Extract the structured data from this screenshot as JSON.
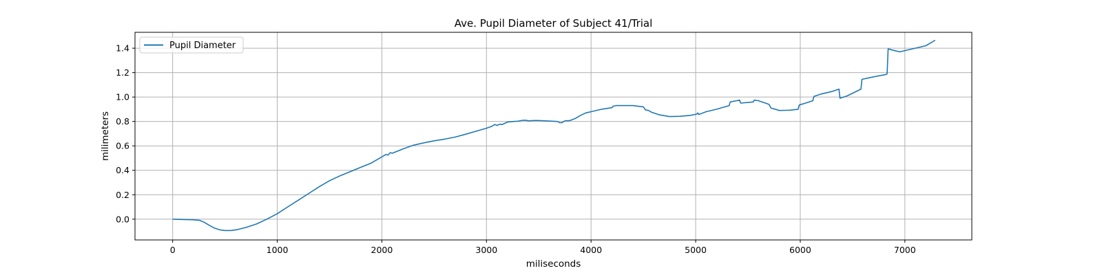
{
  "chart_data": {
    "type": "line",
    "title": "Ave. Pupil Diameter of Subject 41/Trial",
    "xlabel": "miliseconds",
    "ylabel": "milimeters",
    "xlim": [
      -360,
      7640
    ],
    "ylim": [
      -0.17,
      1.53
    ],
    "xticks": [
      0,
      1000,
      2000,
      3000,
      4000,
      5000,
      6000,
      7000
    ],
    "yticks": [
      0.0,
      0.2,
      0.4,
      0.6,
      0.8,
      1.0,
      1.2,
      1.4
    ],
    "xtick_labels": [
      "0",
      "1000",
      "2000",
      "3000",
      "4000",
      "5000",
      "6000",
      "7000"
    ],
    "ytick_labels": [
      "0.0",
      "0.2",
      "0.4",
      "0.6",
      "0.8",
      "1.0",
      "1.2",
      "1.4"
    ],
    "grid": true,
    "legend_position": "upper-left",
    "colors": {
      "series": "#1f77b4",
      "grid": "#b0b0b0"
    },
    "series": [
      {
        "name": "Pupil Diameter",
        "x": [
          0,
          100,
          200,
          260,
          300,
          350,
          400,
          450,
          500,
          560,
          620,
          700,
          800,
          900,
          1000,
          1100,
          1200,
          1300,
          1400,
          1500,
          1600,
          1700,
          1800,
          1900,
          2000,
          2040,
          2060,
          2080,
          2100,
          2200,
          2300,
          2400,
          2500,
          2600,
          2700,
          2800,
          2900,
          3000,
          3050,
          3080,
          3100,
          3130,
          3150,
          3200,
          3260,
          3300,
          3350,
          3380,
          3400,
          3450,
          3500,
          3600,
          3680,
          3700,
          3720,
          3750,
          3800,
          3850,
          3900,
          3950,
          4000,
          4100,
          4200,
          4210,
          4240,
          4260,
          4300,
          4400,
          4500,
          4520,
          4550,
          4580,
          4650,
          4750,
          4850,
          4950,
          5010,
          5020,
          5030,
          5100,
          5200,
          5300,
          5320,
          5330,
          5420,
          5430,
          5550,
          5560,
          5600,
          5700,
          5720,
          5800,
          5900,
          5980,
          5990,
          6050,
          6120,
          6130,
          6200,
          6300,
          6370,
          6380,
          6450,
          6580,
          6590,
          6700,
          6820,
          6830,
          6840,
          6880,
          6950,
          7000,
          7100,
          7200,
          7250,
          7290
        ],
        "values": [
          0.0,
          -0.003,
          -0.005,
          -0.01,
          -0.025,
          -0.05,
          -0.073,
          -0.087,
          -0.093,
          -0.093,
          -0.085,
          -0.068,
          -0.04,
          0.0,
          0.045,
          0.1,
          0.155,
          0.21,
          0.265,
          0.315,
          0.355,
          0.39,
          0.425,
          0.46,
          0.51,
          0.53,
          0.525,
          0.545,
          0.54,
          0.575,
          0.605,
          0.625,
          0.642,
          0.655,
          0.672,
          0.695,
          0.72,
          0.745,
          0.76,
          0.775,
          0.768,
          0.778,
          0.775,
          0.795,
          0.8,
          0.802,
          0.81,
          0.81,
          0.805,
          0.808,
          0.808,
          0.803,
          0.8,
          0.79,
          0.79,
          0.805,
          0.808,
          0.825,
          0.85,
          0.87,
          0.88,
          0.9,
          0.913,
          0.925,
          0.93,
          0.93,
          0.93,
          0.93,
          0.92,
          0.895,
          0.89,
          0.875,
          0.855,
          0.84,
          0.842,
          0.85,
          0.86,
          0.87,
          0.857,
          0.88,
          0.9,
          0.925,
          0.93,
          0.96,
          0.975,
          0.95,
          0.96,
          0.975,
          0.97,
          0.94,
          0.91,
          0.89,
          0.892,
          0.9,
          0.935,
          0.95,
          0.97,
          1.005,
          1.025,
          1.045,
          1.065,
          0.99,
          1.01,
          1.065,
          1.145,
          1.165,
          1.185,
          1.19,
          1.395,
          1.385,
          1.37,
          1.38,
          1.4,
          1.42,
          1.445,
          1.465
        ]
      }
    ]
  }
}
